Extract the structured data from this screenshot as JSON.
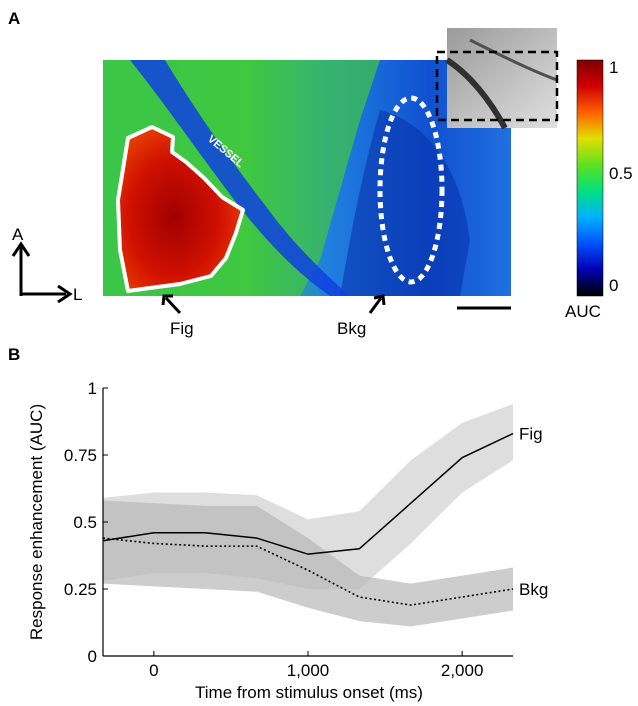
{
  "panels": {
    "a": "A",
    "b": "B"
  },
  "panel_a": {
    "vessel_label": "VESSEL",
    "fig_label": "Fig",
    "bkg_label": "Bkg",
    "orientation": {
      "anterior": "A",
      "lateral": "L"
    },
    "colorbar": {
      "label": "AUC",
      "ticks": [
        "1",
        "0.5",
        "0"
      ],
      "colors": [
        "#000000",
        "#0000b0",
        "#0050ff",
        "#00b0ff",
        "#00e080",
        "#60e020",
        "#e0e000",
        "#ff6000",
        "#d00000",
        "#800000"
      ]
    }
  },
  "chart_data": {
    "type": "line",
    "xlabel": "Time from stimulus onset (ms)",
    "ylabel": "Response enhancement (AUC)",
    "xlim": [
      -330,
      2330
    ],
    "ylim": [
      0,
      1
    ],
    "xticks": [
      0,
      1000,
      2000
    ],
    "xtick_labels": [
      "0",
      "1,000",
      "2,000"
    ],
    "yticks": [
      0,
      0.25,
      0.5,
      0.75,
      1
    ],
    "ytick_labels": [
      "0",
      "0.25",
      "0.5",
      "0.75",
      "1"
    ],
    "x": [
      -330,
      0,
      333,
      667,
      1000,
      1333,
      1667,
      2000,
      2330
    ],
    "series": [
      {
        "name": "Fig",
        "style": "solid",
        "color": "#000000",
        "values": [
          0.43,
          0.46,
          0.46,
          0.44,
          0.38,
          0.4,
          0.57,
          0.74,
          0.83
        ],
        "lower": [
          0.28,
          0.31,
          0.31,
          0.29,
          0.25,
          0.25,
          0.42,
          0.61,
          0.73
        ],
        "upper": [
          0.59,
          0.61,
          0.61,
          0.6,
          0.51,
          0.54,
          0.73,
          0.87,
          0.94
        ]
      },
      {
        "name": "Bkg",
        "style": "dotted",
        "color": "#000000",
        "values": [
          0.44,
          0.42,
          0.41,
          0.41,
          0.32,
          0.22,
          0.19,
          0.22,
          0.25
        ],
        "lower": [
          0.27,
          0.26,
          0.25,
          0.24,
          0.18,
          0.13,
          0.11,
          0.14,
          0.17
        ],
        "upper": [
          0.58,
          0.57,
          0.56,
          0.56,
          0.44,
          0.3,
          0.27,
          0.3,
          0.33
        ]
      }
    ]
  }
}
